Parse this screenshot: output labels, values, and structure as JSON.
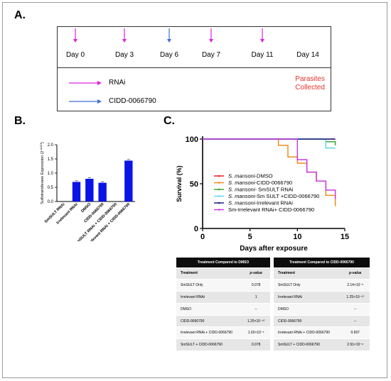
{
  "panel_a": {
    "label": "A.",
    "days": [
      "Day 0",
      "Day 3",
      "Day 6",
      "Day 7",
      "Day 11",
      "Day 14"
    ],
    "arrows": [
      {
        "day": "Day 0",
        "color": "#e020e0"
      },
      {
        "day": "Day 3",
        "color": "#e020e0"
      },
      {
        "day": "Day 6",
        "color": "#3a6fd8"
      },
      {
        "day": "Day 7",
        "color": "#e020e0"
      },
      {
        "day": "Day 11",
        "color": "#e020e0"
      }
    ],
    "legend": [
      {
        "label": "RNAi",
        "color": "#e020e0"
      },
      {
        "label": "CIDD-0066790",
        "color": "#3a6fd8"
      }
    ],
    "collected_line1": "Parasites",
    "collected_line2": "Collected",
    "collected_color": "#e8332a"
  },
  "panel_b": {
    "label": "B.",
    "chart_data": {
      "type": "bar",
      "ylabel": "Sulfotransferase Expression (2^-ΔΔCt)",
      "ylabel_main": "Sulfotransferase Expression (2",
      "ylabel_sup": "-ΔΔCt",
      "ylabel_end": ")",
      "ylim": [
        0,
        2.0
      ],
      "yticks": [
        "0.0",
        "0.5",
        "1.0",
        "1.5",
        "2.0"
      ],
      "categories": [
        "SmSULT RNAi",
        "Irrelevant RNAi",
        "DMSO",
        "CIDD-0066790",
        "SmSULT RNAi + CIDD-0066790",
        "Irrelevant RNAi + CIDD-0066790"
      ],
      "values": [
        0.0,
        0.69,
        0.8,
        0.66,
        0.0,
        1.44
      ],
      "bar_color": "#0a14e6"
    }
  },
  "panel_c": {
    "label": "C.",
    "chart_data": {
      "type": "line",
      "xlabel": "Days after exposure",
      "ylabel": "Survival (%)",
      "xlim": [
        0,
        15
      ],
      "ylim": [
        0,
        100
      ],
      "xticks": [
        "0",
        "5",
        "10",
        "15"
      ],
      "yticks": [
        "0",
        "50",
        "100"
      ],
      "series": [
        {
          "name": "S. mansoni-DMSO",
          "color": "#e8212a",
          "x": [
            0,
            14
          ],
          "y": [
            100,
            100
          ]
        },
        {
          "name": "S. mansoni-CIDD-0066790",
          "color": "#f08c1e",
          "x": [
            0,
            7,
            8,
            9,
            10,
            11,
            12,
            13,
            14
          ],
          "y": [
            100,
            100,
            93,
            80,
            73,
            63,
            53,
            37,
            25
          ]
        },
        {
          "name": "S. mansoni- SmSULT RNAi",
          "color": "#3ca832",
          "x": [
            0,
            11,
            13,
            14
          ],
          "y": [
            100,
            100,
            97,
            93
          ]
        },
        {
          "name": "S. mansoni-Sm SULT +CIDD-0066790",
          "color": "#62d6f0",
          "x": [
            0,
            10,
            13,
            14
          ],
          "y": [
            100,
            100,
            90,
            90
          ]
        },
        {
          "name": "S. mansoni-Irrelevant RNAi",
          "color": "#1a1f8c",
          "x": [
            0,
            14
          ],
          "y": [
            100,
            100
          ]
        },
        {
          "name": "Sm-Irrelevant RNAi+ CIDD-0066790",
          "color": "#c83ce0",
          "x": [
            0,
            9,
            10,
            11,
            12,
            13,
            14
          ],
          "y": [
            100,
            100,
            77,
            63,
            53,
            43,
            33
          ]
        }
      ],
      "series_prefix_italic": [
        "S. mansoni",
        "S. mansoni",
        "S. mansoni",
        "S. mansoni",
        "S. mansoni",
        ""
      ],
      "series_suffix": [
        "-DMSO",
        "-CIDD-0066790",
        "- SmSULT RNAi",
        "-Sm SULT +CIDD-0066790",
        "-Irrelevant RNAi",
        "Sm-Irrelevant RNAi+ CIDD-0066790"
      ]
    }
  },
  "table_left": {
    "title": "Treatment Compared to DMSO",
    "col1": "Treatment",
    "col2": "p-value",
    "rows": [
      {
        "t": "SmSULT Only",
        "p": "0.078"
      },
      {
        "t": "Irrelevant RNAi",
        "p": "1"
      },
      {
        "t": "DMSO",
        "p": "--"
      },
      {
        "t": "CIDD-0066790",
        "p": "1.25×10⁻¹⁰"
      },
      {
        "t": "Irrelevant RNAi + CIDD-0066790",
        "p": "1.02×10⁻⁶"
      },
      {
        "t": "SmSULT + CIDD-0066790",
        "p": "0.078"
      }
    ]
  },
  "table_right": {
    "title": "Treatment Compared to CIDD-0066790",
    "col1": "Treatment",
    "col2": "p-value",
    "rows": [
      {
        "t": "SmSULT Only",
        "p": "2.14×10⁻⁸"
      },
      {
        "t": "Irrelevant RNAi",
        "p": "1.25×10⁻¹⁰"
      },
      {
        "t": "DMSO",
        "p": "--"
      },
      {
        "t": "CIDD-0066790",
        "p": "--"
      },
      {
        "t": "Irrelevant RNAi + CIDD-0066790",
        "p": "0.697"
      },
      {
        "t": "SmSULT + CIDD-0066790",
        "p": "2.91×10⁻⁸"
      }
    ]
  }
}
